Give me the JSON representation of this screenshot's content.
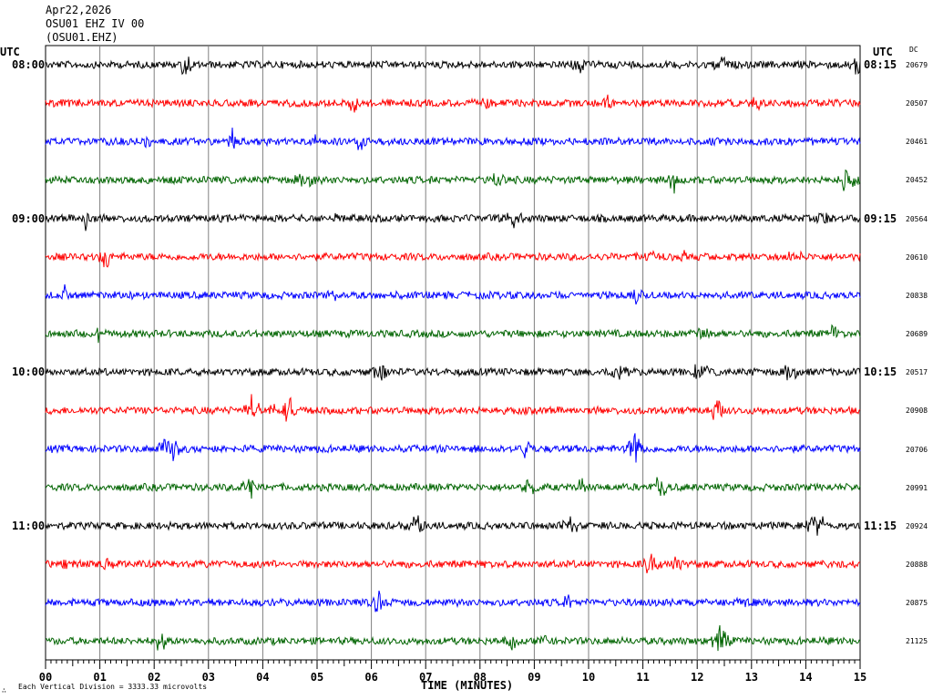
{
  "header": {
    "date": "Apr22,2026",
    "station_line": "OSU01 EHZ IV 00",
    "channel_line": "(OSU01.EHZ)"
  },
  "left_axis_title": "UTC",
  "right_axis_title": "UTC",
  "dc_title": "DC",
  "x_axis_title": "TIME (MINUTES)",
  "footer_note": "Each Vertical Division = 3333.33 microvolts",
  "footer_mark": "∴",
  "colors": {
    "black": "#000000",
    "red": "#ff0000",
    "blue": "#0000ff",
    "green": "#006400"
  },
  "chart_data": {
    "type": "line",
    "title": "",
    "xlabel": "TIME (MINUTES)",
    "ylabel": "",
    "xlim": [
      0,
      15
    ],
    "x_ticks": [
      "00",
      "01",
      "02",
      "03",
      "04",
      "05",
      "06",
      "07",
      "08",
      "09",
      "10",
      "11",
      "12",
      "13",
      "14",
      "15"
    ],
    "left_time_labels": [
      "08:00",
      "",
      "",
      "",
      "09:00",
      "",
      "",
      "",
      "10:00",
      "",
      "",
      "",
      "11:00",
      "",
      "",
      ""
    ],
    "right_time_labels": [
      "08:15",
      "",
      "",
      "",
      "09:15",
      "",
      "",
      "",
      "10:15",
      "",
      "",
      "",
      "11:15",
      "",
      "",
      ""
    ],
    "trace_colors": [
      "black",
      "red",
      "blue",
      "green",
      "black",
      "red",
      "blue",
      "green",
      "black",
      "red",
      "blue",
      "green",
      "black",
      "red",
      "blue",
      "green"
    ],
    "dc_values": [
      "20679",
      "20507",
      "20461",
      "20452",
      "20564",
      "20610",
      "20838",
      "20689",
      "20517",
      "20908",
      "20706",
      "20991",
      "20924",
      "20888",
      "20875",
      "21125"
    ],
    "grid": true
  }
}
